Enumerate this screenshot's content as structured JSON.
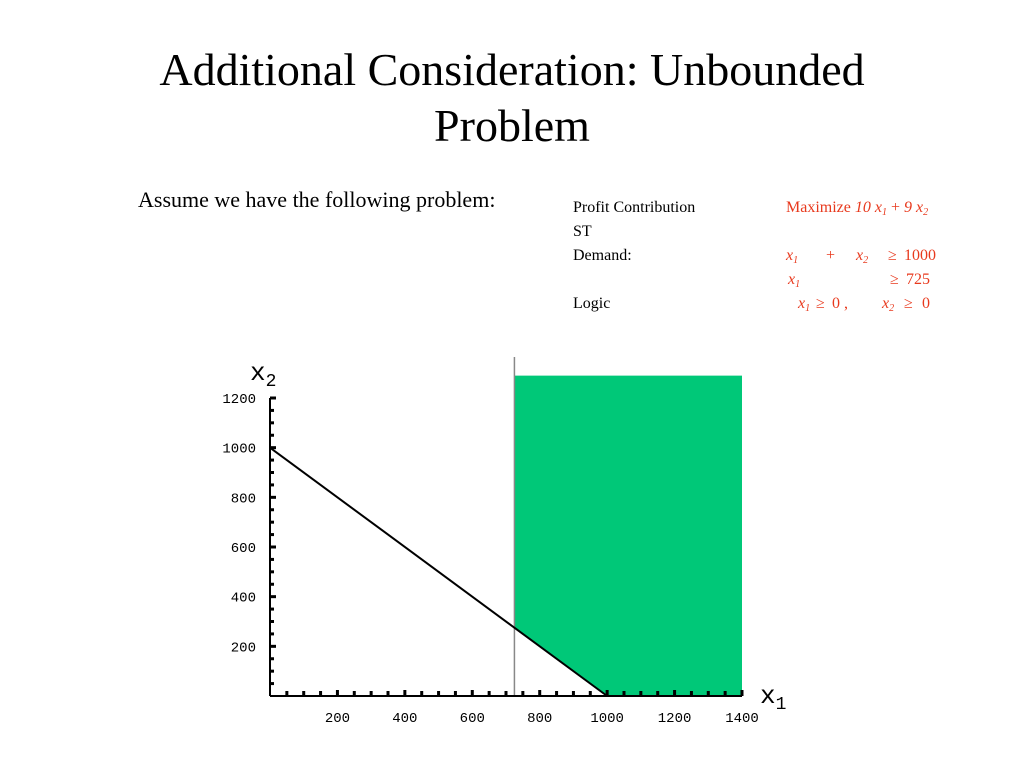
{
  "slide": {
    "title_line1": "Additional Consideration: Unbounded",
    "title_line2": "Problem",
    "intro": "Assume we have the following problem:"
  },
  "problem": {
    "labels": [
      "Profit Contribution",
      "ST",
      "Demand:",
      "",
      "Logic"
    ],
    "objective": {
      "keyword": "Maximize ",
      "c1": "10",
      "c2": "9",
      "x1": "x",
      "x1_sub": "1",
      "x2": "x",
      "x2_sub": "2",
      "plus": "+"
    },
    "constraint1": {
      "x1": "x",
      "x1_sub": "1",
      "plus": "+",
      "x2": "x",
      "x2_sub": "2",
      "sign": "≥",
      "rhs": "1000"
    },
    "constraint2": {
      "x1": "x",
      "x1_sub": "1",
      "sign": "≥",
      "rhs": "725"
    },
    "logic": {
      "x1": "x",
      "x1_sub": "1",
      "sign1": "≥",
      "rhs1": "0 ,",
      "x2": "x",
      "x2_sub": "2",
      "sign2": "≥",
      "rhs2": "0"
    },
    "colors": {
      "math": "#e8391d"
    }
  },
  "chart_data": {
    "type": "line",
    "x_axis_symbol": "x",
    "x_axis_sub": "1",
    "y_axis_symbol": "x",
    "y_axis_sub": "2",
    "x_ticks": [
      200,
      400,
      600,
      800,
      1000,
      1200,
      1400
    ],
    "y_ticks": [
      200,
      400,
      600,
      800,
      1000,
      1200
    ],
    "xlim": [
      0,
      1400
    ],
    "ylim": [
      0,
      1200
    ],
    "constraint_line": {
      "x": [
        0,
        1000
      ],
      "y": [
        1000,
        0
      ]
    },
    "vertical_line_x": 725,
    "feasible_region": {
      "vertices": [
        [
          725,
          1290
        ],
        [
          725,
          275
        ],
        [
          1000,
          0
        ],
        [
          1400,
          0
        ],
        [
          1400,
          1290
        ]
      ],
      "color": "#00c878"
    },
    "colors": {
      "region": "#00c878",
      "vertical_line": "#888888",
      "constraint_line": "#000000"
    },
    "grid": false
  }
}
